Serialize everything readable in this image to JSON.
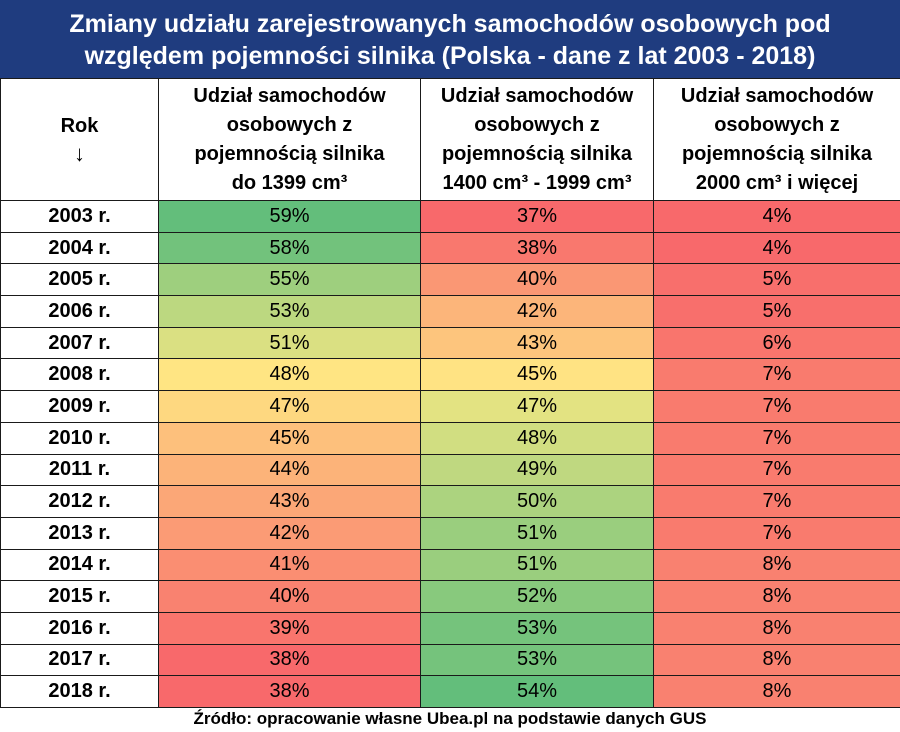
{
  "title_line1": "Zmiany udziału zarejestrowanych samochodów osobowych pod",
  "title_line2": "względem pojemności silnika (Polska - dane z lat 2003 - 2018)",
  "source": "Źródło: opracowanie własne Ubea.pl na podstawie danych GUS",
  "chart_data": {
    "type": "table",
    "columns": [
      {
        "lines": [
          "Rok"
        ],
        "arrow": "↓"
      },
      {
        "lines": [
          "Udział samochodów",
          "osobowych z",
          "pojemnością silnika",
          "do 1399 cm³"
        ]
      },
      {
        "lines": [
          "Udział samochodów",
          "osobowych z",
          "pojemnością silnika",
          "1400 cm³ - 1999 cm³"
        ]
      },
      {
        "lines": [
          "Udział samochodów",
          "osobowych z",
          "pojemnością silnika",
          "2000 cm³ i więcej"
        ]
      }
    ],
    "rows": [
      {
        "year": "2003 r.",
        "values": [
          "59%",
          "37%",
          "4%"
        ]
      },
      {
        "year": "2004 r.",
        "values": [
          "58%",
          "38%",
          "4%"
        ]
      },
      {
        "year": "2005 r.",
        "values": [
          "55%",
          "40%",
          "5%"
        ]
      },
      {
        "year": "2006 r.",
        "values": [
          "53%",
          "42%",
          "5%"
        ]
      },
      {
        "year": "2007 r.",
        "values": [
          "51%",
          "43%",
          "6%"
        ]
      },
      {
        "year": "2008 r.",
        "values": [
          "48%",
          "45%",
          "7%"
        ]
      },
      {
        "year": "2009 r.",
        "values": [
          "47%",
          "47%",
          "7%"
        ]
      },
      {
        "year": "2010 r.",
        "values": [
          "45%",
          "48%",
          "7%"
        ]
      },
      {
        "year": "2011 r.",
        "values": [
          "44%",
          "49%",
          "7%"
        ]
      },
      {
        "year": "2012 r.",
        "values": [
          "43%",
          "50%",
          "7%"
        ]
      },
      {
        "year": "2013 r.",
        "values": [
          "42%",
          "51%",
          "7%"
        ]
      },
      {
        "year": "2014 r.",
        "values": [
          "41%",
          "51%",
          "8%"
        ]
      },
      {
        "year": "2015 r.",
        "values": [
          "40%",
          "52%",
          "8%"
        ]
      },
      {
        "year": "2016 r.",
        "values": [
          "39%",
          "53%",
          "8%"
        ]
      },
      {
        "year": "2017 r.",
        "values": [
          "38%",
          "53%",
          "8%"
        ]
      },
      {
        "year": "2018 r.",
        "values": [
          "38%",
          "54%",
          "8%"
        ]
      }
    ],
    "color_scale": {
      "low": "#f8696b",
      "mid": "#ffeb84",
      "high": "#63be7b"
    }
  }
}
